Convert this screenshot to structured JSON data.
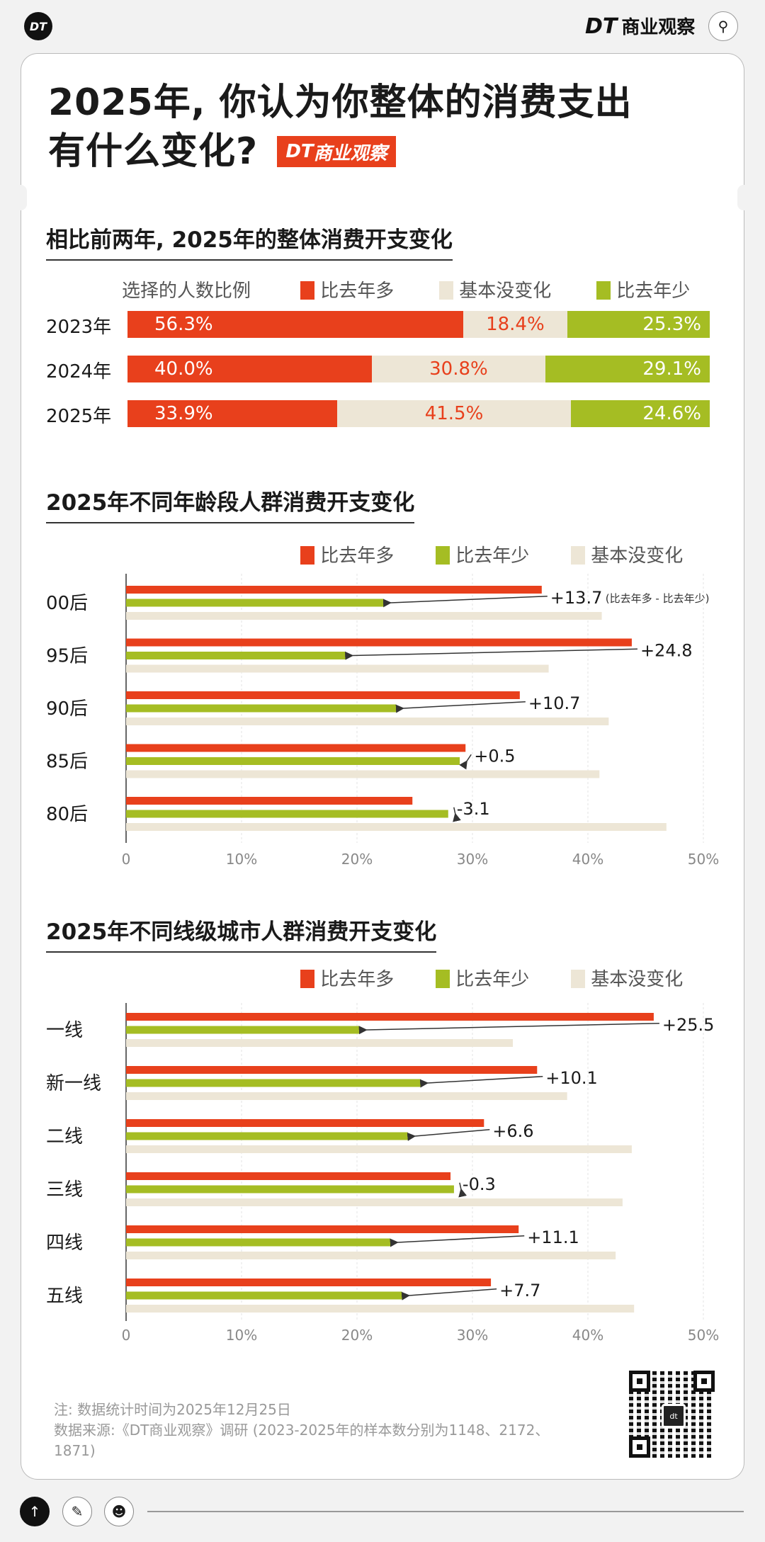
{
  "header": {
    "logo_text": "DT",
    "brand_short": "DT",
    "brand_name": "商业观察",
    "search_icon": "search-icon"
  },
  "title": {
    "line1": "2025年, 你认为你整体的消费支出",
    "line2": "有什么变化?",
    "badge_short": "DT",
    "badge_name": "商业观察"
  },
  "colors": {
    "more": "#e8401c",
    "less": "#a5bd23",
    "same": "#ede6d6"
  },
  "chart_data": [
    {
      "type": "bar",
      "stacked": true,
      "orientation": "horizontal",
      "title": "相比前两年, 2025年的整体消费开支变化",
      "legend_title": "选择的人数比例",
      "legend_placement": "top-right",
      "categories": [
        "2023年",
        "2024年",
        "2025年"
      ],
      "series": [
        {
          "name": "比去年多",
          "values": [
            56.3,
            40.0,
            33.9
          ],
          "labels": [
            "56.3%",
            "40.0%",
            "33.9%"
          ]
        },
        {
          "name": "基本没变化",
          "values": [
            18.4,
            30.8,
            41.5
          ],
          "labels": [
            "18.4%",
            "30.8%",
            "41.5%"
          ]
        },
        {
          "name": "比去年少",
          "values": [
            25.3,
            29.1,
            24.6
          ],
          "labels": [
            "25.3%",
            "29.1%",
            "24.6%"
          ]
        }
      ]
    },
    {
      "type": "bar",
      "orientation": "horizontal",
      "title": "2025年不同年龄段人群消费开支变化",
      "legend_placement": "top-right",
      "categories": [
        "00后",
        "95后",
        "90后",
        "85后",
        "80后"
      ],
      "series": [
        {
          "name": "比去年多",
          "values": [
            36.0,
            43.8,
            34.1,
            29.4,
            24.8
          ]
        },
        {
          "name": "比去年少",
          "values": [
            22.3,
            19.0,
            23.4,
            28.9,
            27.9
          ]
        },
        {
          "name": "基本没变化",
          "values": [
            41.2,
            36.6,
            41.8,
            41.0,
            46.8
          ]
        }
      ],
      "annotations": [
        "+13.7",
        "+24.8",
        "+10.7",
        "+0.5",
        "-3.1"
      ],
      "annotation_note": "(比去年多 - 比去年少)",
      "xlim": [
        0,
        50
      ],
      "xticks": [
        "0",
        "10%",
        "20%",
        "30%",
        "40%",
        "50%"
      ],
      "grid": true
    },
    {
      "type": "bar",
      "orientation": "horizontal",
      "title": "2025年不同线级城市人群消费开支变化",
      "legend_placement": "top-right",
      "categories": [
        "一线",
        "新一线",
        "二线",
        "三线",
        "四线",
        "五线"
      ],
      "series": [
        {
          "name": "比去年多",
          "values": [
            45.7,
            35.6,
            31.0,
            28.1,
            34.0,
            31.6
          ]
        },
        {
          "name": "比去年少",
          "values": [
            20.2,
            25.5,
            24.4,
            28.4,
            22.9,
            23.9
          ]
        },
        {
          "name": "基本没变化",
          "values": [
            33.5,
            38.2,
            43.8,
            43.0,
            42.4,
            44.0
          ]
        }
      ],
      "annotations": [
        "+25.5",
        "+10.1",
        "+6.6",
        "-0.3",
        "+11.1",
        "+7.7"
      ],
      "xlim": [
        0,
        50
      ],
      "xticks": [
        "0",
        "10%",
        "20%",
        "30%",
        "40%",
        "50%"
      ],
      "grid": true
    }
  ],
  "footer": {
    "note": "注: 数据统计时间为2025年12月25日",
    "source_line1": "数据来源:《DT商业观察》调研 (2023-2025年的样本数分别为1148、2172、",
    "source_line2": "1871)",
    "qr_label": "dt"
  },
  "bottom_bar": {
    "icons": [
      "arrow-up-icon",
      "pencil-icon",
      "person-icon"
    ]
  }
}
